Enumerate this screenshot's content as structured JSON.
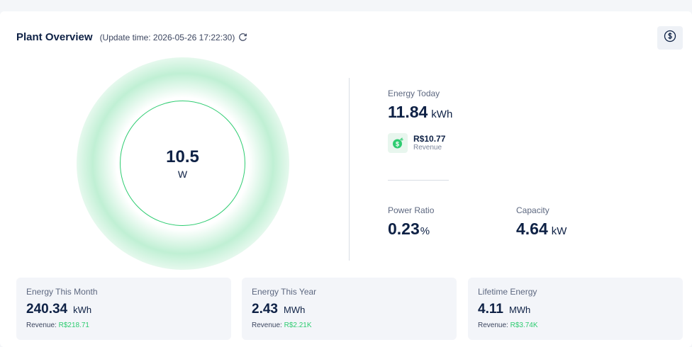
{
  "header": {
    "title": "Plant Overview",
    "update_time": "(Update time: 2026-05-26 17:22:30)"
  },
  "gauge": {
    "value": "10.5",
    "unit": "W"
  },
  "energy_today": {
    "label": "Energy Today",
    "value": "11.84",
    "unit": "kWh",
    "revenue_amount": "R$10.77",
    "revenue_label": "Revenue"
  },
  "power_ratio": {
    "label": "Power Ratio",
    "value": "0.23",
    "unit": "%"
  },
  "capacity": {
    "label": "Capacity",
    "value": "4.64",
    "unit": "kW"
  },
  "stats": [
    {
      "label": "Energy This Month",
      "value": "240.34",
      "unit": "kWh",
      "revenue_label": "Revenue:",
      "revenue_value": "R$218.71"
    },
    {
      "label": "Energy This Year",
      "value": "2.43",
      "unit": "MWh",
      "revenue_label": "Revenue:",
      "revenue_value": "R$2.21K"
    },
    {
      "label": "Lifetime Energy",
      "value": "4.11",
      "unit": "MWh",
      "revenue_label": "Revenue:",
      "revenue_value": "R$3.74K"
    }
  ],
  "icons": {
    "refresh": "refresh-icon",
    "currency": "currency-dollar-icon",
    "revenue": "money-bag-icon"
  },
  "colors": {
    "accent_green": "#2ecc71",
    "text_dark": "#0e2145"
  }
}
